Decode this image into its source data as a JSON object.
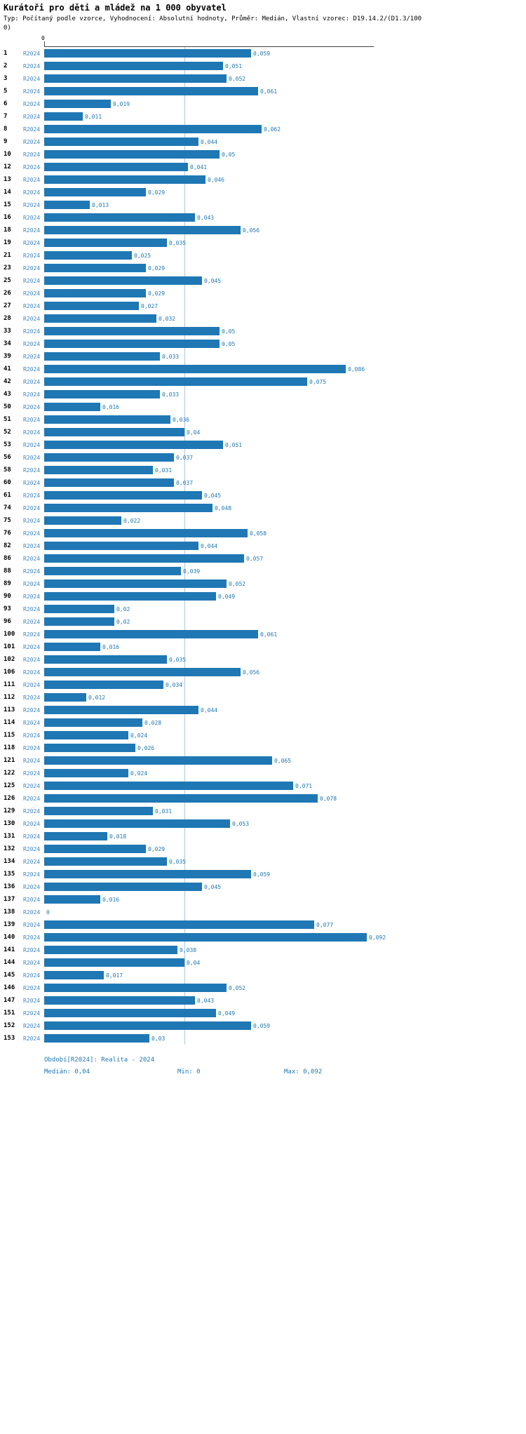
{
  "title": "Kurátoři pro děti a mládež na 1 000 obyvatel",
  "subtitle_line1": "Typ: Počítaný podle vzorce, Vyhodnocení: Absolutní hodnoty, Průměr: Medián, Vlastní vzorec: D19.14.2/(D1.3/100",
  "subtitle_line2": "0)",
  "axis": {
    "zero_label": "0"
  },
  "footer": {
    "period": "Období[R2024]: Realita - 2024",
    "median": "Medián: 0,04",
    "min": "Min: 0",
    "max": "Max: 0,092"
  },
  "chart_data": {
    "type": "bar",
    "orientation": "horizontal",
    "series_label": "R2024",
    "title": "Kurátoři pro děti a mládež na 1 000 obyvatel",
    "xlim": [
      0,
      0.092
    ],
    "median": 0.04,
    "min": 0,
    "max": 0.092,
    "bar_color": "#1f77b4",
    "categories": [
      "1",
      "2",
      "3",
      "5",
      "6",
      "7",
      "8",
      "9",
      "10",
      "12",
      "13",
      "14",
      "15",
      "16",
      "18",
      "19",
      "21",
      "23",
      "25",
      "26",
      "27",
      "28",
      "33",
      "34",
      "39",
      "41",
      "42",
      "43",
      "50",
      "51",
      "52",
      "53",
      "56",
      "58",
      "60",
      "61",
      "74",
      "75",
      "76",
      "82",
      "86",
      "88",
      "89",
      "90",
      "93",
      "96",
      "100",
      "101",
      "102",
      "106",
      "111",
      "112",
      "113",
      "114",
      "115",
      "118",
      "121",
      "122",
      "125",
      "126",
      "129",
      "130",
      "131",
      "132",
      "134",
      "135",
      "136",
      "137",
      "138",
      "139",
      "140",
      "141",
      "144",
      "145",
      "146",
      "147",
      "151",
      "152",
      "153"
    ],
    "values": [
      0.059,
      0.051,
      0.052,
      0.061,
      0.019,
      0.011,
      0.062,
      0.044,
      0.05,
      0.041,
      0.046,
      0.029,
      0.013,
      0.043,
      0.056,
      0.035,
      0.025,
      0.029,
      0.045,
      0.029,
      0.027,
      0.032,
      0.05,
      0.05,
      0.033,
      0.086,
      0.075,
      0.033,
      0.016,
      0.036,
      0.04,
      0.051,
      0.037,
      0.031,
      0.037,
      0.045,
      0.048,
      0.022,
      0.058,
      0.044,
      0.057,
      0.039,
      0.052,
      0.049,
      0.02,
      0.02,
      0.061,
      0.016,
      0.035,
      0.056,
      0.034,
      0.012,
      0.044,
      0.028,
      0.024,
      0.026,
      0.065,
      0.024,
      0.071,
      0.078,
      0.031,
      0.053,
      0.018,
      0.029,
      0.035,
      0.059,
      0.045,
      0.016,
      0,
      0.077,
      0.092,
      0.038,
      0.04,
      0.017,
      0.052,
      0.043,
      0.049,
      0.059,
      0.03
    ],
    "value_labels": [
      "0,059",
      "0,051",
      "0,052",
      "0,061",
      "0,019",
      "0,011",
      "0,062",
      "0,044",
      "0,05",
      "0,041",
      "0,046",
      "0,029",
      "0,013",
      "0,043",
      "0,056",
      "0,035",
      "0,025",
      "0,029",
      "0,045",
      "0,029",
      "0,027",
      "0,032",
      "0,05",
      "0,05",
      "0,033",
      "0,086",
      "0,075",
      "0,033",
      "0,016",
      "0,036",
      "0,04",
      "0,051",
      "0,037",
      "0,031",
      "0,037",
      "0,045",
      "0,048",
      "0,022",
      "0,058",
      "0,044",
      "0,057",
      "0,039",
      "0,052",
      "0,049",
      "0,02",
      "0,02",
      "0,061",
      "0,016",
      "0,035",
      "0,056",
      "0,034",
      "0,012",
      "0,044",
      "0,028",
      "0,024",
      "0,026",
      "0,065",
      "0,024",
      "0,071",
      "0,078",
      "0,031",
      "0,053",
      "0,018",
      "0,029",
      "0,035",
      "0,059",
      "0,045",
      "0,016",
      "0",
      "0,077",
      "0,092",
      "0,038",
      "0,04",
      "0,017",
      "0,052",
      "0,043",
      "0,049",
      "0,059",
      "0,03"
    ]
  }
}
